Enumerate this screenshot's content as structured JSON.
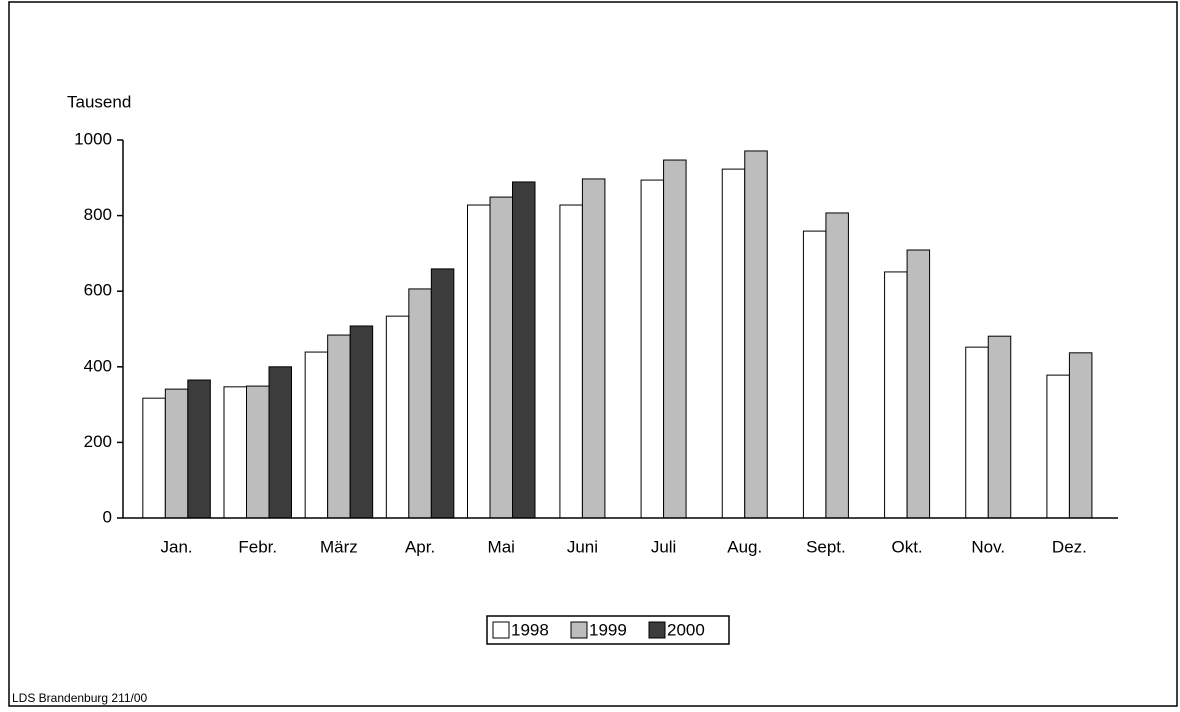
{
  "chart_data": {
    "type": "bar",
    "y_label": "Tausend",
    "categories": [
      "Jan.",
      "Febr.",
      "März",
      "Apr.",
      "Mai",
      "Juni",
      "Juli",
      "Aug.",
      "Sept.",
      "Okt.",
      "Nov.",
      "Dez."
    ],
    "series": [
      {
        "name": "1998",
        "color": "#ffffff",
        "values": [
          317,
          347,
          439,
          534,
          828,
          828,
          894,
          923,
          759,
          651,
          452,
          378
        ]
      },
      {
        "name": "1999",
        "color": "#bdbdbd",
        "values": [
          341,
          349,
          484,
          606,
          849,
          897,
          947,
          971,
          807,
          709,
          481,
          437
        ]
      },
      {
        "name": "2000",
        "color": "#3c3c3c",
        "values": [
          365,
          400,
          508,
          659,
          889,
          null,
          null,
          null,
          null,
          null,
          null,
          null
        ]
      }
    ],
    "ylim": [
      0,
      1000
    ],
    "yticks": [
      0,
      200,
      400,
      600,
      800,
      1000
    ],
    "legend": "bottom",
    "source": "LDS Brandenburg 211/00"
  }
}
